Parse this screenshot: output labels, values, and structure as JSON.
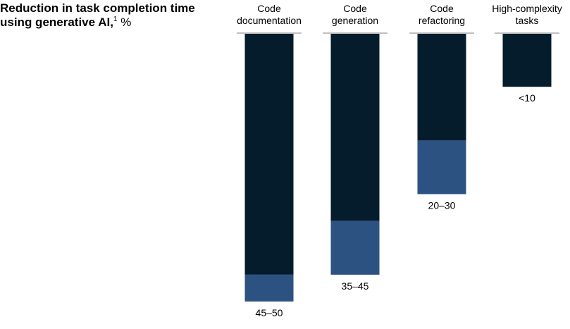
{
  "title": {
    "text": "Reduction in task completion time using generative AI,",
    "footnote": "1",
    "unit": "%"
  },
  "colors": {
    "bar_dark": "#051c2c",
    "bar_range": "#2c5282"
  },
  "chart_data": {
    "type": "bar",
    "orientation": "vertical-hanging",
    "title": "Reduction in task completion time using generative AI, %",
    "categories": [
      [
        "Code",
        "documentation"
      ],
      [
        "Code",
        "generation"
      ],
      [
        "Code",
        "refactoring"
      ],
      [
        "High-complexity",
        "tasks"
      ]
    ],
    "range_low": [
      45,
      35,
      20,
      10
    ],
    "range_high": [
      50,
      45,
      30,
      10
    ],
    "data_labels": [
      "45–50",
      "35–45",
      "20–30",
      "<10"
    ],
    "ylim": [
      0,
      50
    ],
    "grid": false,
    "legend": "none"
  }
}
